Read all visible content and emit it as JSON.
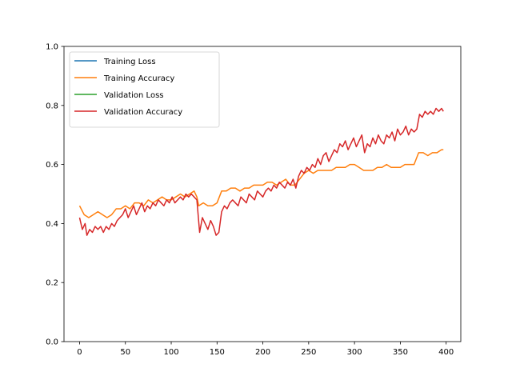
{
  "chart_data": {
    "type": "line",
    "title": "",
    "xlabel": "",
    "ylabel": "",
    "xlim": [
      -17,
      416
    ],
    "ylim": [
      0.0,
      1.0
    ],
    "xticks": [
      0,
      50,
      100,
      150,
      200,
      250,
      300,
      350,
      400
    ],
    "yticks": [
      0.0,
      0.2,
      0.4,
      0.6,
      0.8,
      1.0
    ],
    "xtick_labels": [
      "0",
      "50",
      "100",
      "150",
      "200",
      "250",
      "300",
      "350",
      "400"
    ],
    "ytick_labels": [
      "0.0",
      "0.2",
      "0.4",
      "0.6",
      "0.8",
      "1.0"
    ],
    "grid": false,
    "legend": "upper-left",
    "series": [
      {
        "name": "Training Loss",
        "color": "#1f77b4",
        "x": [],
        "y": []
      },
      {
        "name": "Training Accuracy",
        "color": "#ff7f0e",
        "x": [
          0,
          5,
          10,
          15,
          20,
          25,
          30,
          35,
          40,
          45,
          50,
          55,
          60,
          65,
          70,
          75,
          80,
          85,
          90,
          95,
          100,
          105,
          110,
          115,
          120,
          125,
          128,
          130,
          135,
          140,
          145,
          150,
          155,
          160,
          165,
          170,
          175,
          180,
          185,
          190,
          195,
          200,
          205,
          210,
          215,
          220,
          225,
          230,
          235,
          240,
          245,
          250,
          255,
          260,
          265,
          270,
          275,
          280,
          285,
          290,
          295,
          300,
          305,
          310,
          315,
          320,
          325,
          330,
          335,
          340,
          345,
          350,
          355,
          360,
          365,
          370,
          375,
          380,
          385,
          390,
          395,
          397
        ],
        "y": [
          0.46,
          0.43,
          0.42,
          0.43,
          0.44,
          0.43,
          0.42,
          0.43,
          0.45,
          0.45,
          0.46,
          0.45,
          0.47,
          0.47,
          0.46,
          0.48,
          0.47,
          0.48,
          0.49,
          0.48,
          0.48,
          0.49,
          0.5,
          0.49,
          0.5,
          0.51,
          0.49,
          0.46,
          0.47,
          0.46,
          0.46,
          0.47,
          0.51,
          0.51,
          0.52,
          0.52,
          0.51,
          0.52,
          0.52,
          0.53,
          0.53,
          0.53,
          0.54,
          0.54,
          0.53,
          0.54,
          0.55,
          0.53,
          0.53,
          0.55,
          0.57,
          0.58,
          0.57,
          0.58,
          0.58,
          0.58,
          0.58,
          0.59,
          0.59,
          0.59,
          0.6,
          0.6,
          0.59,
          0.58,
          0.58,
          0.58,
          0.59,
          0.59,
          0.6,
          0.59,
          0.59,
          0.59,
          0.6,
          0.6,
          0.6,
          0.64,
          0.64,
          0.63,
          0.64,
          0.64,
          0.65,
          0.65
        ]
      },
      {
        "name": "Validation Loss",
        "color": "#2ca02c",
        "x": [],
        "y": []
      },
      {
        "name": "Validation Accuracy",
        "color": "#d62728",
        "x": [
          0,
          3,
          6,
          8,
          11,
          14,
          17,
          20,
          23,
          26,
          29,
          32,
          35,
          38,
          41,
          44,
          47,
          50,
          53,
          56,
          59,
          62,
          65,
          68,
          71,
          74,
          77,
          80,
          83,
          86,
          89,
          92,
          95,
          98,
          101,
          104,
          107,
          110,
          113,
          116,
          119,
          122,
          125,
          128,
          131,
          134,
          137,
          140,
          143,
          146,
          149,
          152,
          155,
          158,
          161,
          164,
          167,
          170,
          173,
          176,
          179,
          182,
          185,
          188,
          191,
          194,
          197,
          200,
          203,
          206,
          209,
          212,
          215,
          218,
          221,
          224,
          227,
          230,
          233,
          236,
          239,
          242,
          245,
          248,
          251,
          254,
          257,
          260,
          263,
          266,
          269,
          272,
          275,
          278,
          281,
          284,
          287,
          290,
          293,
          296,
          299,
          302,
          305,
          308,
          311,
          314,
          317,
          320,
          323,
          326,
          329,
          332,
          335,
          338,
          341,
          344,
          347,
          350,
          353,
          356,
          359,
          362,
          365,
          368,
          371,
          374,
          377,
          380,
          383,
          386,
          389,
          392,
          395,
          397
        ],
        "y": [
          0.42,
          0.38,
          0.4,
          0.36,
          0.38,
          0.37,
          0.39,
          0.38,
          0.39,
          0.37,
          0.39,
          0.38,
          0.4,
          0.39,
          0.41,
          0.42,
          0.43,
          0.45,
          0.42,
          0.44,
          0.46,
          0.43,
          0.45,
          0.47,
          0.44,
          0.46,
          0.45,
          0.47,
          0.46,
          0.48,
          0.47,
          0.46,
          0.48,
          0.47,
          0.49,
          0.47,
          0.48,
          0.49,
          0.48,
          0.5,
          0.49,
          0.5,
          0.49,
          0.48,
          0.37,
          0.42,
          0.4,
          0.38,
          0.41,
          0.39,
          0.36,
          0.37,
          0.44,
          0.46,
          0.45,
          0.47,
          0.48,
          0.47,
          0.46,
          0.49,
          0.48,
          0.47,
          0.5,
          0.49,
          0.48,
          0.51,
          0.5,
          0.49,
          0.51,
          0.52,
          0.51,
          0.53,
          0.52,
          0.54,
          0.53,
          0.52,
          0.54,
          0.53,
          0.55,
          0.52,
          0.56,
          0.58,
          0.57,
          0.59,
          0.58,
          0.6,
          0.59,
          0.62,
          0.6,
          0.63,
          0.64,
          0.61,
          0.63,
          0.65,
          0.64,
          0.67,
          0.66,
          0.68,
          0.65,
          0.67,
          0.69,
          0.66,
          0.68,
          0.7,
          0.64,
          0.67,
          0.66,
          0.69,
          0.67,
          0.7,
          0.68,
          0.67,
          0.7,
          0.69,
          0.71,
          0.68,
          0.72,
          0.7,
          0.71,
          0.73,
          0.7,
          0.72,
          0.71,
          0.72,
          0.77,
          0.76,
          0.78,
          0.77,
          0.78,
          0.77,
          0.79,
          0.78,
          0.79,
          0.78
        ]
      }
    ]
  }
}
